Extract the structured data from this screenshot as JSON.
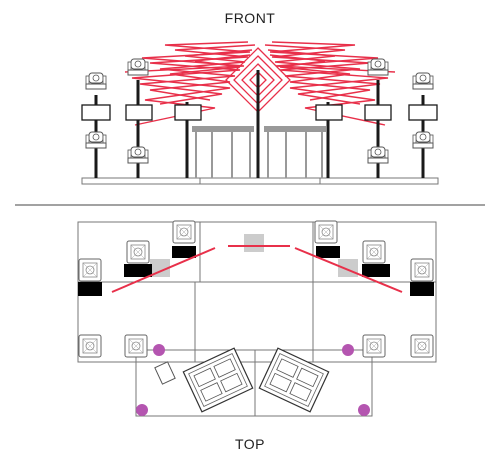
{
  "titles": {
    "front": "FRONT",
    "top": "TOP"
  },
  "colors": {
    "line": "#1a1a1a",
    "outline": "#666666",
    "laser": "#e8304a",
    "truss": "#999999",
    "cabinet": "#000000",
    "gray_box": "#cccccc",
    "spot": "#b455b0"
  },
  "icons": {
    "moving_head": "moving-head-light-icon",
    "spot": "spot-marker-icon"
  }
}
